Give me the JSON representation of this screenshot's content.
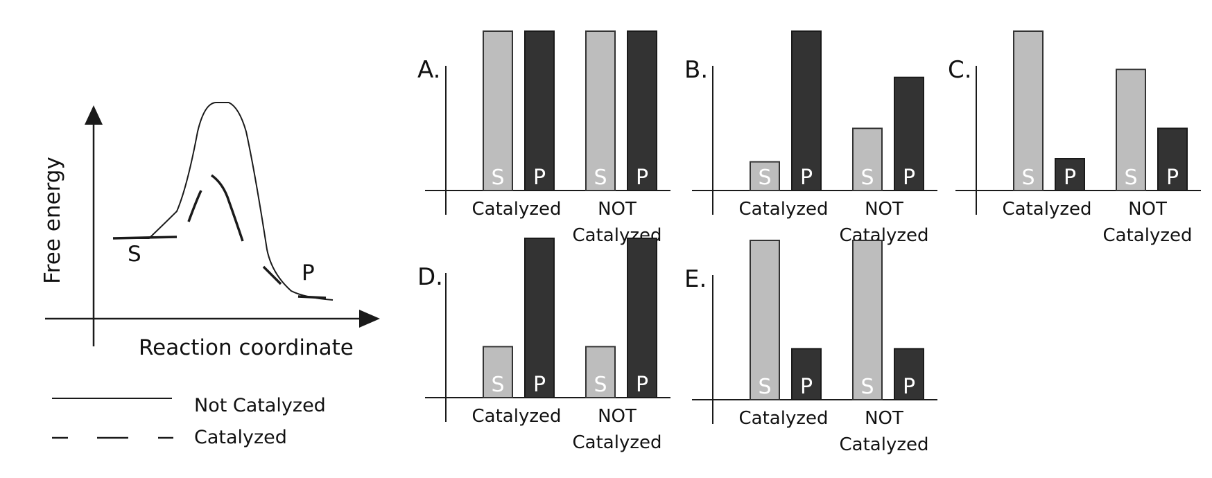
{
  "energy_diagram": {
    "y_axis_label": "Free energy",
    "x_axis_label": "Reaction coordinate",
    "substrate_label": "S",
    "product_label": "P",
    "legend": [
      {
        "label": "Not Catalyzed",
        "style": "solid"
      },
      {
        "label": "Catalyzed",
        "style": "dashed"
      }
    ]
  },
  "colors": {
    "substrate_bar": "#bdbdbd",
    "product_bar": "#333333",
    "line": "#1a1a1a"
  },
  "chart_data": [
    {
      "type": "bar",
      "panel": "A.",
      "groups": [
        {
          "label": "Catalyzed",
          "values": {
            "S": 1.0,
            "P": 1.0
          }
        },
        {
          "label": "NOT Catalyzed",
          "values": {
            "S": 1.0,
            "P": 1.0
          }
        }
      ],
      "bar_labels": [
        "S",
        "P"
      ]
    },
    {
      "type": "bar",
      "panel": "B.",
      "groups": [
        {
          "label": "Catalyzed",
          "values": {
            "S": 0.18,
            "P": 1.0
          }
        },
        {
          "label": "NOT Catalyzed",
          "values": {
            "S": 0.39,
            "P": 0.71
          }
        }
      ],
      "bar_labels": [
        "S",
        "P"
      ]
    },
    {
      "type": "bar",
      "panel": "C.",
      "groups": [
        {
          "label": "Catalyzed",
          "values": {
            "S": 1.0,
            "P": 0.2
          }
        },
        {
          "label": "NOT Catalyzed",
          "values": {
            "S": 0.76,
            "P": 0.39
          }
        }
      ],
      "bar_labels": [
        "S",
        "P"
      ]
    },
    {
      "type": "bar",
      "panel": "D.",
      "groups": [
        {
          "label": "Catalyzed",
          "values": {
            "S": 0.32,
            "P": 1.0
          }
        },
        {
          "label": "NOT Catalyzed",
          "values": {
            "S": 0.32,
            "P": 1.0
          }
        }
      ],
      "bar_labels": [
        "S",
        "P"
      ]
    },
    {
      "type": "bar",
      "panel": "E.",
      "groups": [
        {
          "label": "Catalyzed",
          "values": {
            "S": 1.0,
            "P": 0.32
          }
        },
        {
          "label": "NOT Catalyzed",
          "values": {
            "S": 1.0,
            "P": 0.32
          }
        }
      ],
      "bar_labels": [
        "S",
        "P"
      ]
    }
  ]
}
